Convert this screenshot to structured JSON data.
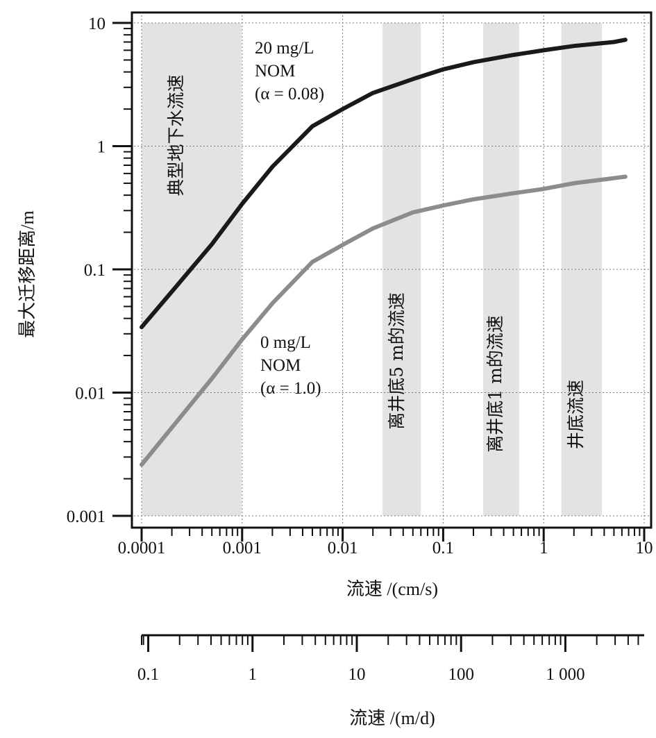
{
  "chart_data": {
    "type": "line",
    "x_scale": "log",
    "y_scale": "log",
    "xlim": [
      0.0001,
      10
    ],
    "ylim": [
      0.001,
      10
    ],
    "grid": true,
    "xlabel": "流速 /(cm/s)",
    "ylabel": "最大迁移距离/m",
    "x_ticks": [
      "0.0001",
      "0.001",
      "0.01",
      "0.1",
      "1",
      "10"
    ],
    "y_ticks": [
      "0.001",
      "0.01",
      "0.1",
      "1",
      "10"
    ],
    "secondary_x_axis": {
      "xlabel": "流速 /(m/d)",
      "ticks": [
        {
          "value": 0.1,
          "label": "0.1"
        },
        {
          "value": 1,
          "label": "1"
        },
        {
          "value": 10,
          "label": "10"
        },
        {
          "value": 100,
          "label": "100"
        },
        {
          "value": 1000,
          "label": "1 000"
        }
      ],
      "xlim": [
        0.0864,
        5700
      ]
    },
    "bands": [
      {
        "label": "典型地下水流速",
        "x": [
          0.0001,
          0.00098
        ]
      },
      {
        "label": "离井底5 m的流速",
        "x": [
          0.025,
          0.06
        ]
      },
      {
        "label": "离井底1 m的流速",
        "x": [
          0.25,
          0.57
        ]
      },
      {
        "label": "井底流速",
        "x": [
          1.5,
          3.8
        ]
      }
    ],
    "series": [
      {
        "name_lines": [
          "20 mg/L",
          "NOM",
          "(α = 0.08)"
        ],
        "color": "#1a1a1a",
        "points": [
          [
            0.0001,
            0.034
          ],
          [
            0.0002,
            0.066
          ],
          [
            0.0005,
            0.16
          ],
          [
            0.001,
            0.34
          ],
          [
            0.002,
            0.68
          ],
          [
            0.005,
            1.45
          ],
          [
            0.01,
            2.0
          ],
          [
            0.02,
            2.7
          ],
          [
            0.05,
            3.5
          ],
          [
            0.1,
            4.2
          ],
          [
            0.2,
            4.8
          ],
          [
            0.5,
            5.5
          ],
          [
            1,
            6.0
          ],
          [
            2,
            6.5
          ],
          [
            5,
            7.0
          ],
          [
            6.5,
            7.3
          ]
        ]
      },
      {
        "name_lines": [
          "0 mg/L",
          "NOM",
          "(α = 1.0)"
        ],
        "color": "#8c8c8c",
        "points": [
          [
            0.0001,
            0.0026
          ],
          [
            0.0002,
            0.0052
          ],
          [
            0.0005,
            0.013
          ],
          [
            0.001,
            0.027
          ],
          [
            0.002,
            0.053
          ],
          [
            0.005,
            0.115
          ],
          [
            0.01,
            0.158
          ],
          [
            0.02,
            0.215
          ],
          [
            0.05,
            0.29
          ],
          [
            0.1,
            0.33
          ],
          [
            0.2,
            0.37
          ],
          [
            0.5,
            0.415
          ],
          [
            1,
            0.45
          ],
          [
            2,
            0.5
          ],
          [
            5,
            0.55
          ],
          [
            6.5,
            0.565
          ]
        ]
      }
    ]
  }
}
